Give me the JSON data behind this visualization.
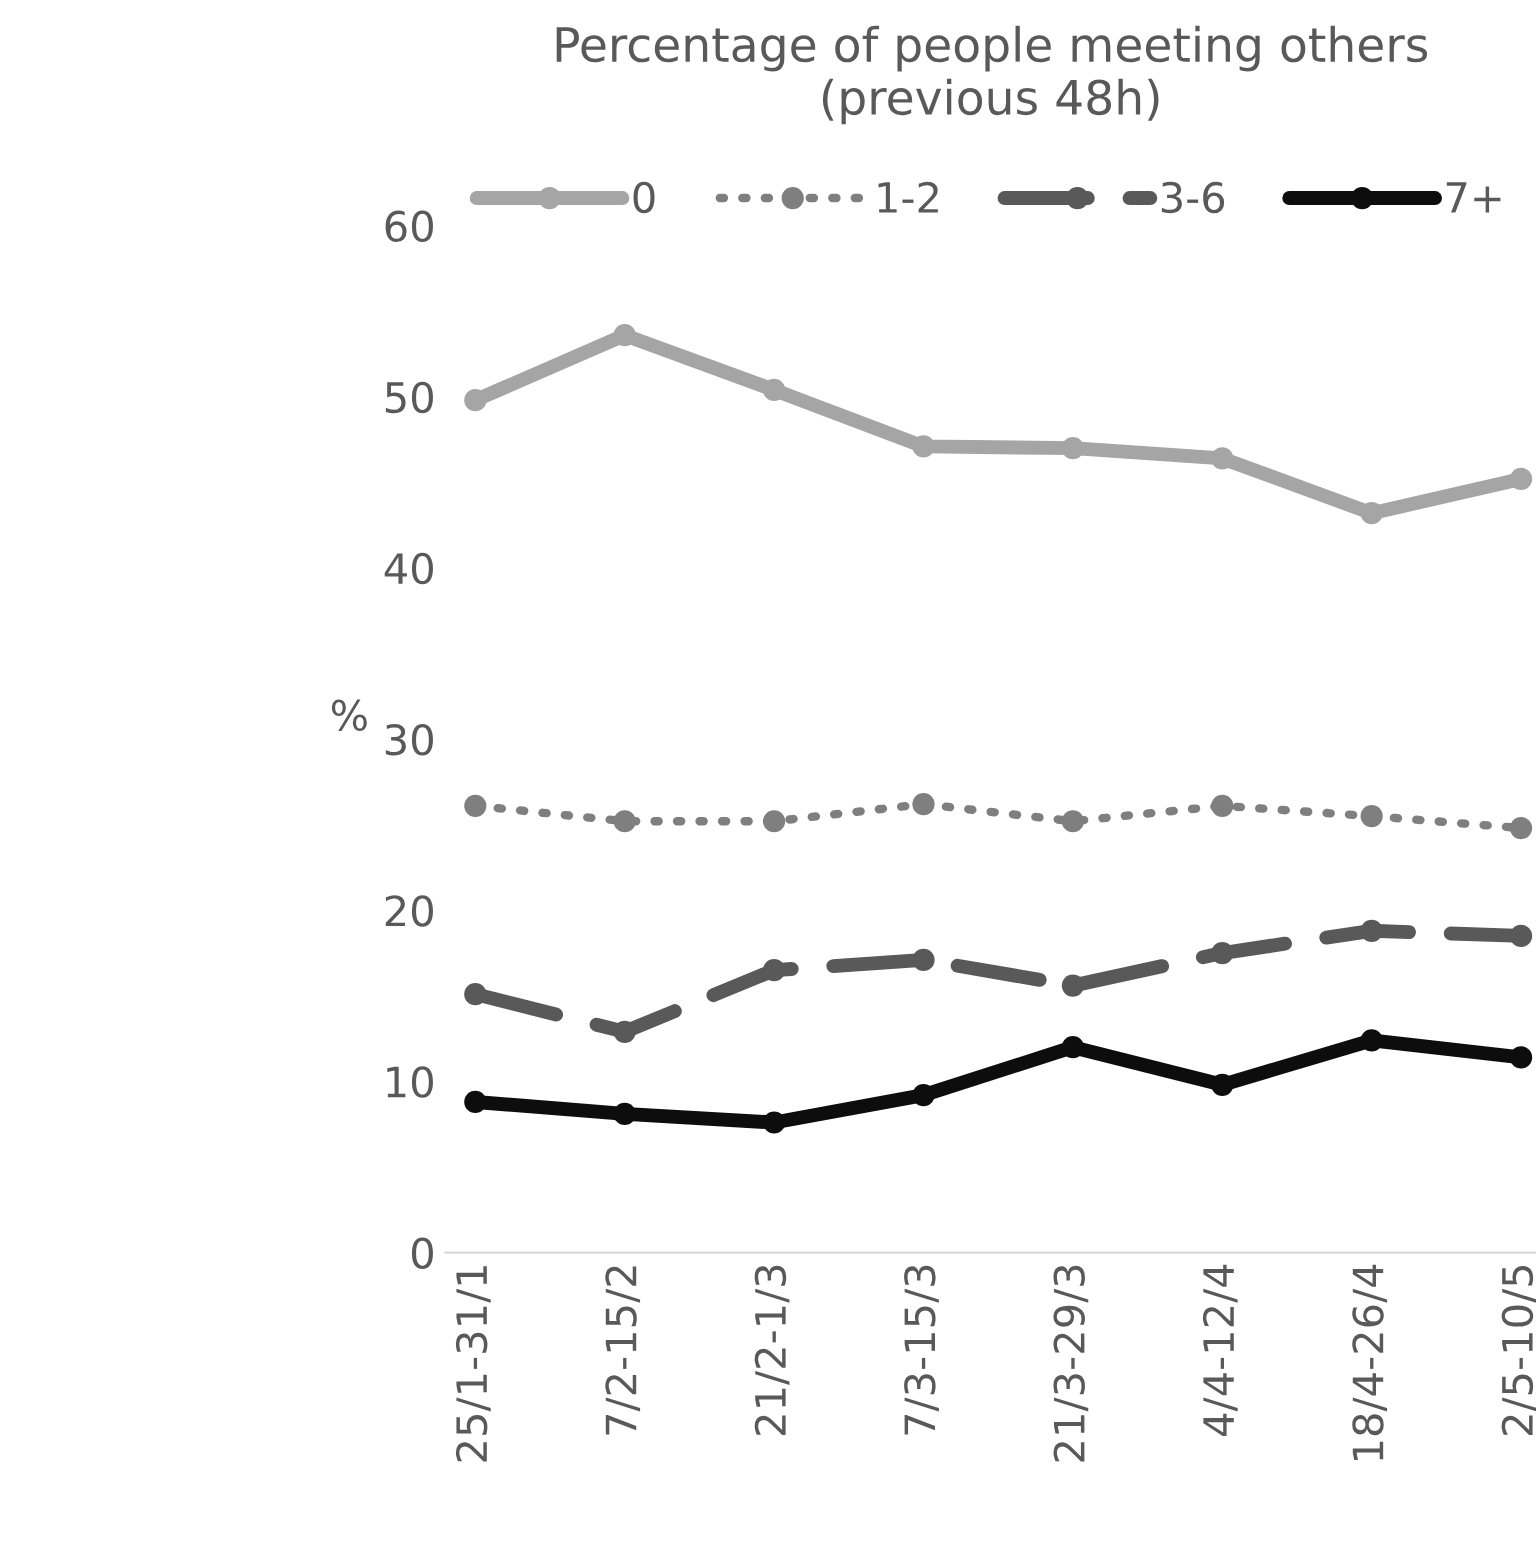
{
  "chart_data": {
    "type": "line",
    "title": "Percentage of people meeting others\n(previous 48h)",
    "ylabel": "%",
    "categories": [
      "25/1-31/1",
      "7/2-15/2",
      "21/2-1/3",
      "7/3-15/3",
      "21/3-29/3",
      "4/4-12/4",
      "18/4-26/4",
      "2/5-10/5"
    ],
    "series": [
      {
        "name": "0",
        "color": "#a5a5a5",
        "line_style": "solid",
        "values": [
          49.8,
          53.6,
          50.4,
          47.1,
          47.0,
          46.4,
          43.2,
          45.2
        ]
      },
      {
        "name": "1-2",
        "color": "#7f7f7f",
        "line_style": "dotted",
        "values": [
          26.1,
          25.2,
          25.2,
          26.2,
          25.2,
          26.1,
          25.5,
          24.8
        ]
      },
      {
        "name": "3-6",
        "color": "#595959",
        "line_style": "dashed",
        "values": [
          15.1,
          12.9,
          16.5,
          17.1,
          15.6,
          17.5,
          18.8,
          18.5
        ]
      },
      {
        "name": "7+",
        "color": "#0d0d0d",
        "line_style": "solid",
        "values": [
          8.8,
          8.1,
          7.6,
          9.2,
          12.0,
          9.8,
          12.4,
          11.4
        ]
      }
    ],
    "ylim": [
      0,
      60
    ],
    "yticks": [
      0,
      10,
      20,
      30,
      40,
      50,
      60
    ],
    "grid": false,
    "legend": "top",
    "marker": "circle"
  }
}
